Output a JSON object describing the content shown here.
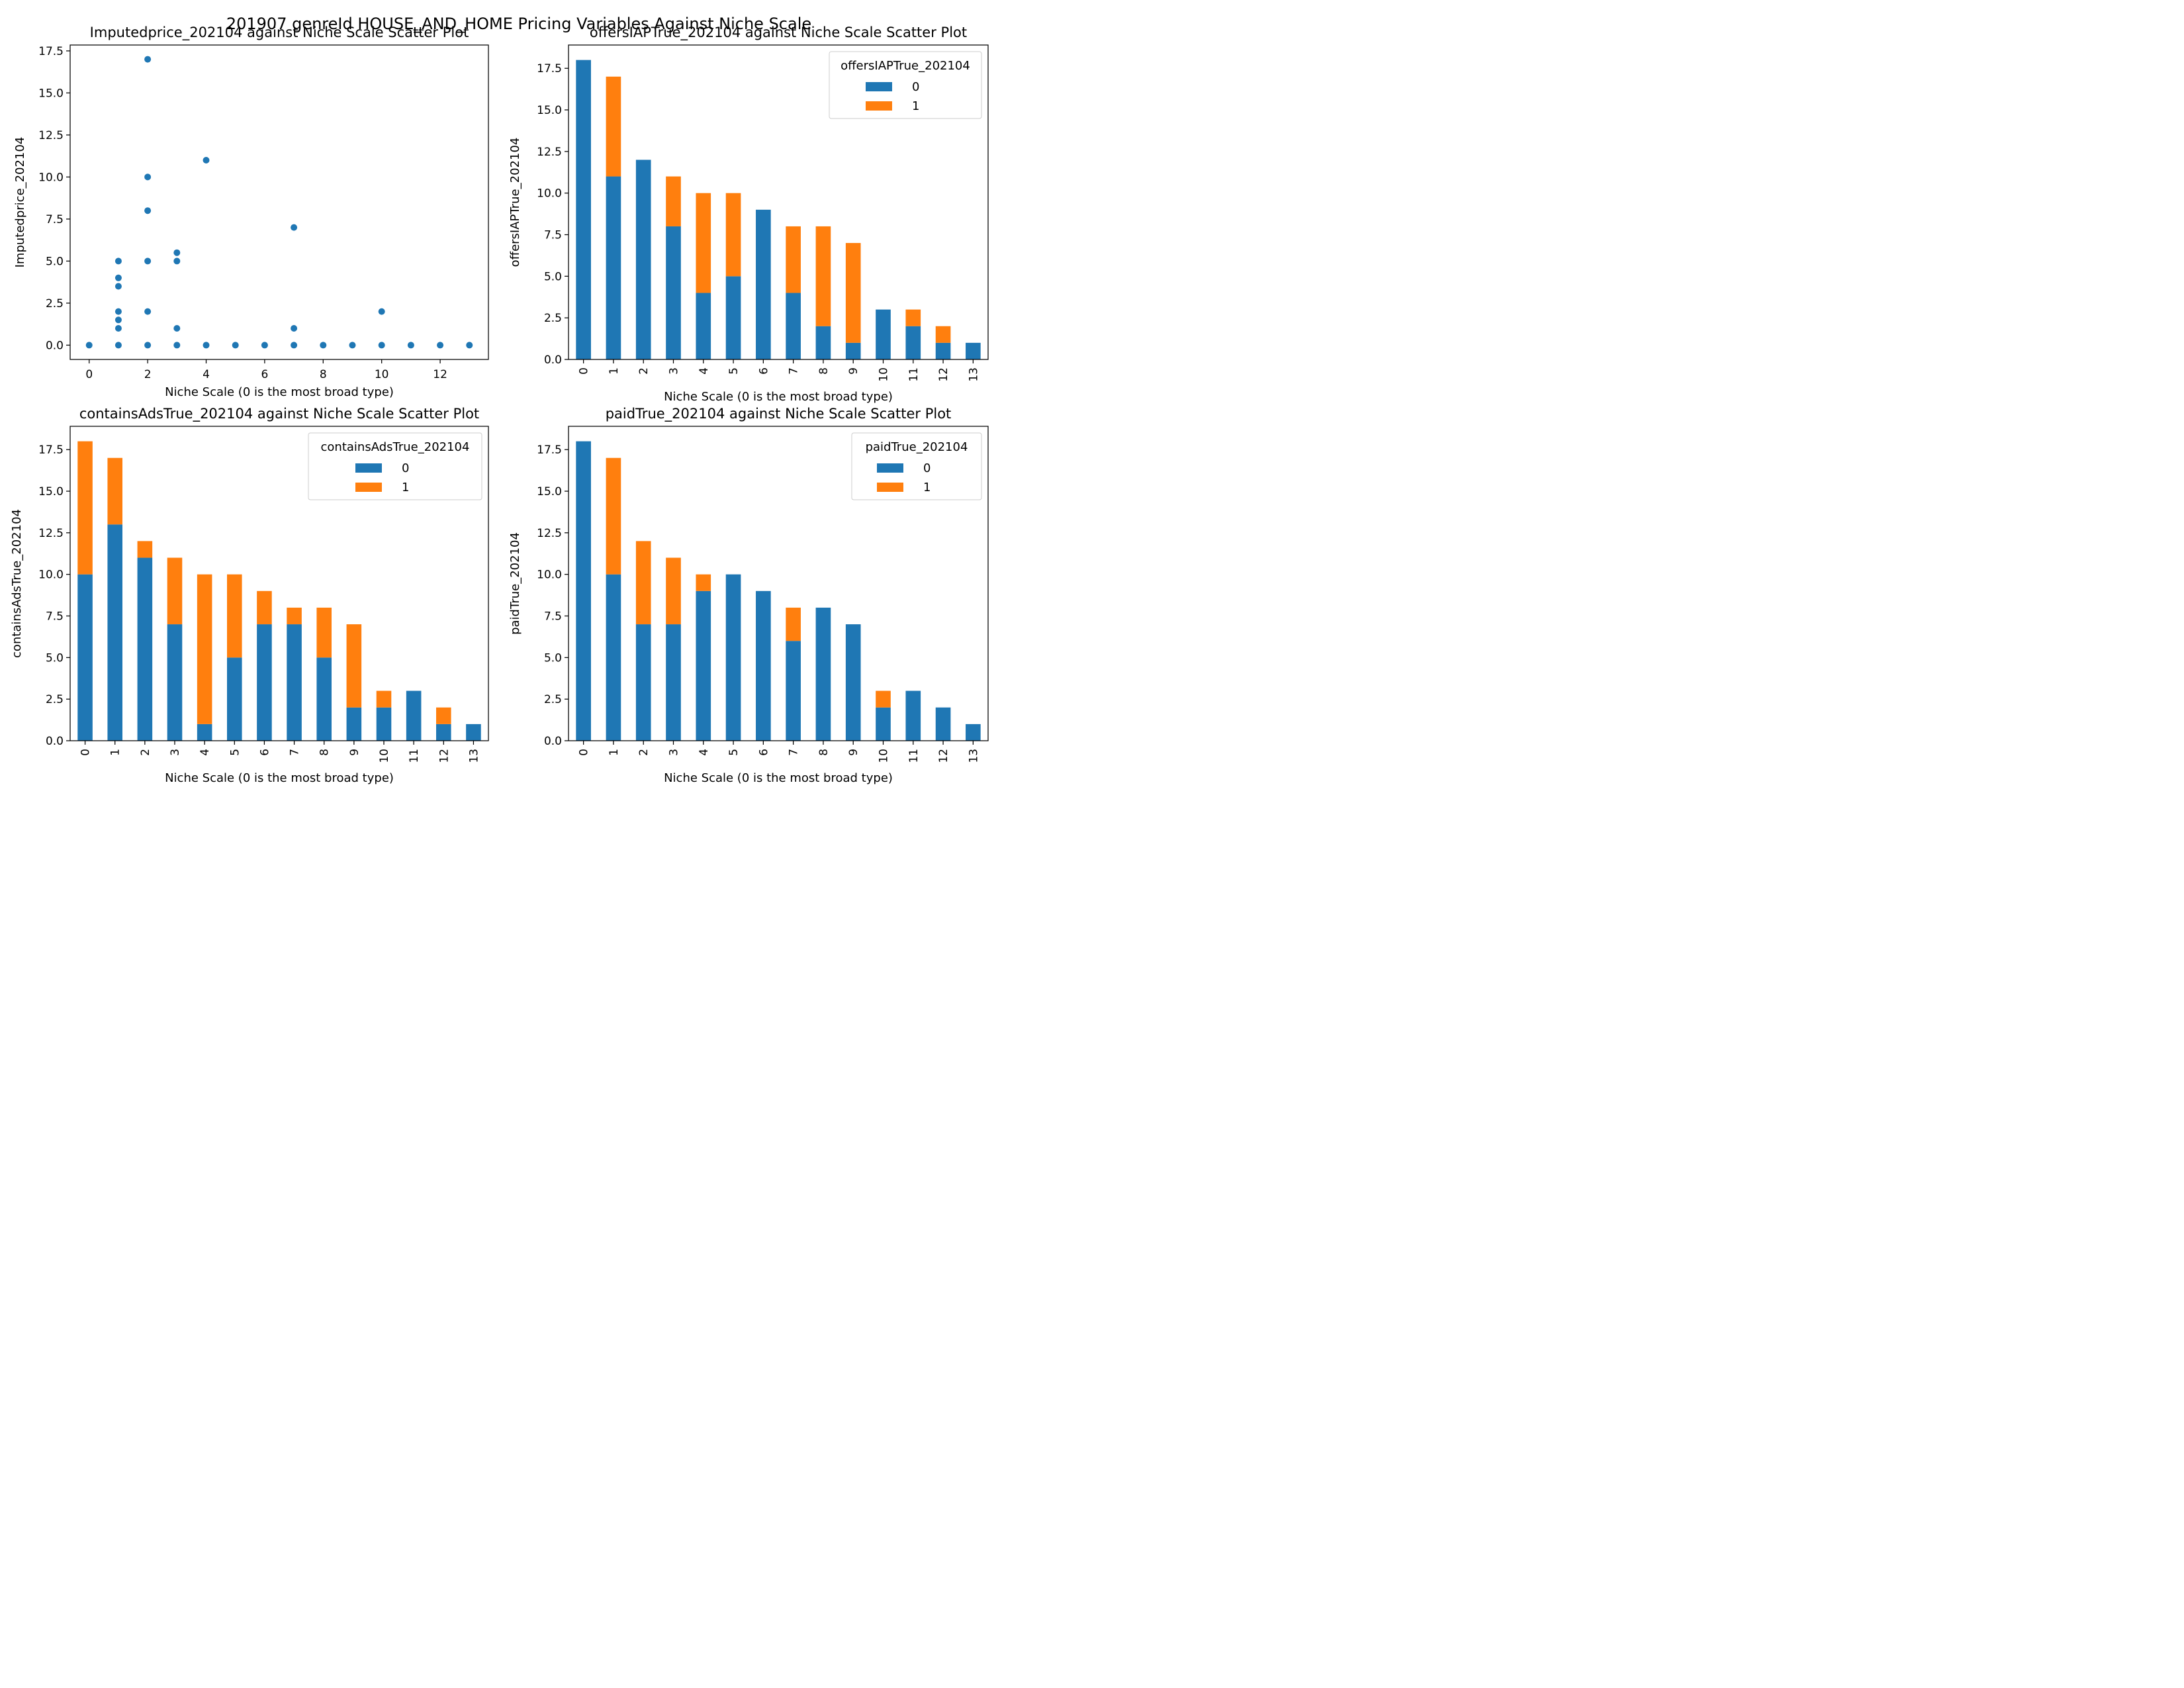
{
  "suptitle": "201907 genreId HOUSE_AND_HOME Pricing Variables Against Niche Scale",
  "colors": {
    "series0": "#1f77b4",
    "series1": "#ff7f0e",
    "axis": "#000000",
    "background": "#ffffff"
  },
  "chart_data": [
    {
      "type": "scatter",
      "title": "Imputedprice_202104 against Niche Scale Scatter Plot",
      "xlabel": "Niche Scale (0 is the most broad type)",
      "ylabel": "Imputedprice_202104",
      "xlim": [
        -0.65,
        13.65
      ],
      "ylim": [
        -0.85,
        17.85
      ],
      "xticks": [
        0,
        2,
        4,
        6,
        8,
        10,
        12
      ],
      "xtick_labels": [
        "0",
        "2",
        "4",
        "6",
        "8",
        "10",
        "12"
      ],
      "yticks": [
        0,
        2.5,
        5,
        7.5,
        10,
        12.5,
        15,
        17.5
      ],
      "ytick_labels": [
        "0.0",
        "2.5",
        "5.0",
        "7.5",
        "10.0",
        "12.5",
        "15.0",
        "17.5"
      ],
      "points": [
        [
          0,
          0
        ],
        [
          1,
          0
        ],
        [
          1,
          1
        ],
        [
          1,
          1.5
        ],
        [
          1,
          2
        ],
        [
          1,
          3.5
        ],
        [
          1,
          4
        ],
        [
          1,
          5
        ],
        [
          2,
          0
        ],
        [
          2,
          2
        ],
        [
          2,
          5
        ],
        [
          2,
          8
        ],
        [
          2,
          10
        ],
        [
          2,
          17
        ],
        [
          3,
          0
        ],
        [
          3,
          1
        ],
        [
          3,
          5
        ],
        [
          3,
          5.5
        ],
        [
          4,
          0
        ],
        [
          4,
          11
        ],
        [
          5,
          0
        ],
        [
          6,
          0
        ],
        [
          7,
          0
        ],
        [
          7,
          1
        ],
        [
          7,
          7
        ],
        [
          8,
          0
        ],
        [
          9,
          0
        ],
        [
          10,
          0
        ],
        [
          10,
          2
        ],
        [
          11,
          0
        ],
        [
          12,
          0
        ],
        [
          13,
          0
        ]
      ]
    },
    {
      "type": "bar",
      "stacked": true,
      "title": "offersIAPTrue_202104 against Niche Scale Scatter Plot",
      "xlabel": "Niche Scale (0 is the most broad type)",
      "ylabel": "offersIAPTrue_202104",
      "categories": [
        "0",
        "1",
        "2",
        "3",
        "4",
        "5",
        "6",
        "7",
        "8",
        "9",
        "10",
        "11",
        "12",
        "13"
      ],
      "ylim": [
        0,
        18.9
      ],
      "yticks": [
        0,
        2.5,
        5,
        7.5,
        10,
        12.5,
        15,
        17.5
      ],
      "ytick_labels": [
        "0.0",
        "2.5",
        "5.0",
        "7.5",
        "10.0",
        "12.5",
        "15.0",
        "17.5"
      ],
      "legend_title": "offersIAPTrue_202104",
      "legend_position": "top-right",
      "series": [
        {
          "name": "0",
          "values": [
            18,
            11,
            12,
            8,
            4,
            5,
            9,
            4,
            2,
            1,
            3,
            2,
            1,
            1
          ]
        },
        {
          "name": "1",
          "values": [
            0,
            6,
            0,
            3,
            6,
            5,
            0,
            4,
            6,
            6,
            0,
            1,
            1,
            0
          ]
        }
      ]
    },
    {
      "type": "bar",
      "stacked": true,
      "title": "containsAdsTrue_202104 against Niche Scale Scatter Plot",
      "xlabel": "Niche Scale (0 is the most broad type)",
      "ylabel": "containsAdsTrue_202104",
      "categories": [
        "0",
        "1",
        "2",
        "3",
        "4",
        "5",
        "6",
        "7",
        "8",
        "9",
        "10",
        "11",
        "12",
        "13"
      ],
      "ylim": [
        0,
        18.9
      ],
      "yticks": [
        0,
        2.5,
        5,
        7.5,
        10,
        12.5,
        15,
        17.5
      ],
      "ytick_labels": [
        "0.0",
        "2.5",
        "5.0",
        "7.5",
        "10.0",
        "12.5",
        "15.0",
        "17.5"
      ],
      "legend_title": "containsAdsTrue_202104",
      "legend_position": "top-right",
      "series": [
        {
          "name": "0",
          "values": [
            10,
            13,
            11,
            7,
            1,
            5,
            7,
            7,
            5,
            2,
            2,
            3,
            1,
            1
          ]
        },
        {
          "name": "1",
          "values": [
            8,
            4,
            1,
            4,
            9,
            5,
            2,
            1,
            3,
            5,
            1,
            0,
            1,
            0
          ]
        }
      ]
    },
    {
      "type": "bar",
      "stacked": true,
      "title": "paidTrue_202104 against Niche Scale Scatter Plot",
      "xlabel": "Niche Scale (0 is the most broad type)",
      "ylabel": "paidTrue_202104",
      "categories": [
        "0",
        "1",
        "2",
        "3",
        "4",
        "5",
        "6",
        "7",
        "8",
        "9",
        "10",
        "11",
        "12",
        "13"
      ],
      "ylim": [
        0,
        18.9
      ],
      "yticks": [
        0,
        2.5,
        5,
        7.5,
        10,
        12.5,
        15,
        17.5
      ],
      "ytick_labels": [
        "0.0",
        "2.5",
        "5.0",
        "7.5",
        "10.0",
        "12.5",
        "15.0",
        "17.5"
      ],
      "legend_title": "paidTrue_202104",
      "legend_position": "top-right",
      "series": [
        {
          "name": "0",
          "values": [
            18,
            10,
            7,
            7,
            9,
            10,
            9,
            6,
            8,
            7,
            2,
            3,
            2,
            1
          ]
        },
        {
          "name": "1",
          "values": [
            0,
            7,
            5,
            4,
            1,
            0,
            0,
            2,
            0,
            0,
            1,
            0,
            0,
            0
          ]
        }
      ]
    }
  ]
}
